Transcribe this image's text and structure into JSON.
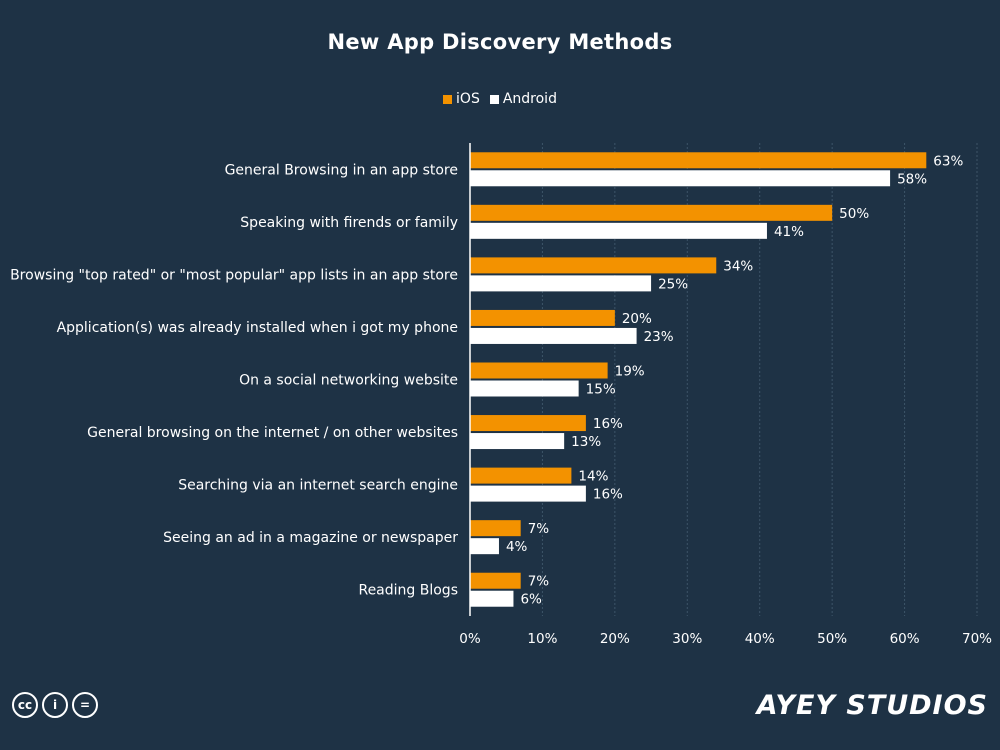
{
  "title": "New App Discovery Methods",
  "legend": [
    {
      "label": "iOS",
      "color": "#f39200"
    },
    {
      "label": "Android",
      "color": "#ffffff"
    }
  ],
  "chart_data": {
    "type": "bar",
    "orientation": "horizontal",
    "title": "New App Discovery Methods",
    "categories": [
      "General Browsing in an app store",
      "Speaking with firends or family",
      "Browsing \"top rated\" or \"most popular\" app lists in an app store",
      "Application(s) was already installed when i got my phone",
      "On a social networking website",
      "General browsing on the internet / on other websites",
      "Searching via an internet search engine",
      "Seeing an ad in a magazine or newspaper",
      "Reading Blogs"
    ],
    "series": [
      {
        "name": "iOS",
        "color": "#f39200",
        "values": [
          63,
          50,
          34,
          20,
          19,
          16,
          14,
          7,
          7
        ]
      },
      {
        "name": "Android",
        "color": "#ffffff",
        "values": [
          58,
          41,
          25,
          23,
          15,
          13,
          16,
          4,
          6
        ]
      }
    ],
    "xlim": [
      0,
      70
    ],
    "xticks": [
      "0%",
      "10%",
      "20%",
      "30%",
      "40%",
      "50%",
      "60%",
      "70%"
    ],
    "value_suffix": "%",
    "grid": true,
    "legend_position": "top-center"
  },
  "footer": {
    "license_icons": [
      "cc-icon",
      "attribution-icon",
      "no-derivatives-icon"
    ],
    "license_glyphs": [
      "cc",
      "i",
      "="
    ],
    "brand": "AYEY STUDIOS"
  }
}
